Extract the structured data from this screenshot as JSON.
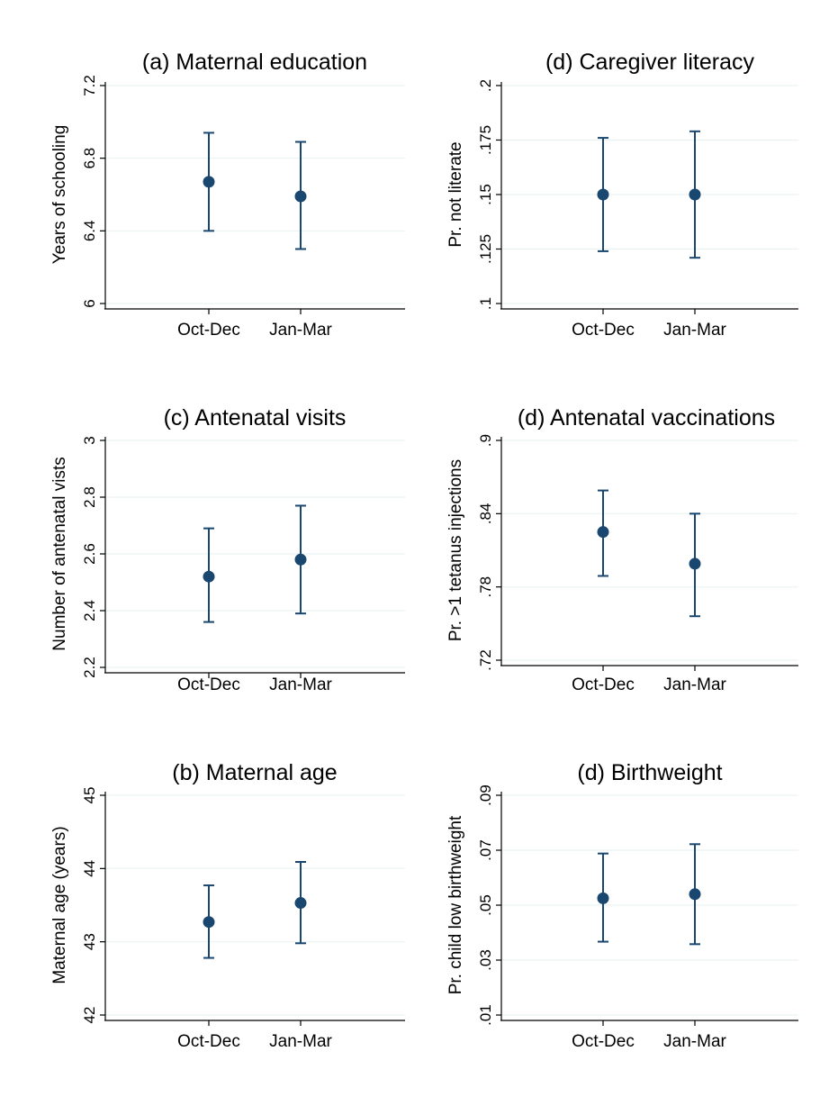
{
  "colors": {
    "background": "#ffffff",
    "marker": "#1a476f",
    "error_bar": "#1a476f",
    "gridline": "#eaf2f3",
    "axis": "#000000"
  },
  "chart_data": [
    {
      "type": "scatter",
      "title": "(a) Maternal education",
      "xlabel": "",
      "ylabel": "Years of schooling",
      "categories": [
        "Oct-Dec",
        "Jan-Mar"
      ],
      "values": [
        6.67,
        6.59
      ],
      "ci_low": [
        6.4,
        6.3
      ],
      "ci_high": [
        6.94,
        6.89
      ],
      "ylim": [
        6,
        7.2
      ],
      "yticks": [
        6,
        6.4,
        6.8,
        7.2
      ],
      "ytick_labels": [
        "6",
        "6.4",
        "6.8",
        "7.2"
      ],
      "grid": true,
      "error_bars": true
    },
    {
      "type": "scatter",
      "title": "(d) Caregiver literacy",
      "xlabel": "",
      "ylabel": "Pr. not literate",
      "categories": [
        "Oct-Dec",
        "Jan-Mar"
      ],
      "values": [
        0.15,
        0.15
      ],
      "ci_low": [
        0.124,
        0.121
      ],
      "ci_high": [
        0.176,
        0.179
      ],
      "ylim": [
        0.1,
        0.2
      ],
      "yticks": [
        0.1,
        0.125,
        0.15,
        0.175,
        0.2
      ],
      "ytick_labels": [
        ".1",
        ".125",
        ".15",
        ".175",
        ".2"
      ],
      "grid": true,
      "error_bars": true
    },
    {
      "type": "scatter",
      "title": "(c) Antenatal visits",
      "xlabel": "",
      "ylabel": "Number of antenatal vists",
      "categories": [
        "Oct-Dec",
        "Jan-Mar"
      ],
      "values": [
        2.52,
        2.58
      ],
      "ci_low": [
        2.36,
        2.39
      ],
      "ci_high": [
        2.69,
        2.77
      ],
      "ylim": [
        2.2,
        3.0
      ],
      "yticks": [
        2.2,
        2.4,
        2.6,
        2.8,
        3.0
      ],
      "ytick_labels": [
        "2.2",
        "2.4",
        "2.6",
        "2.8",
        "3"
      ],
      "grid": true,
      "error_bars": true
    },
    {
      "type": "scatter",
      "title": "(d) Antenatal vaccinations",
      "xlabel": "",
      "ylabel": "Pr. >1 tetanus injections",
      "categories": [
        "Oct-Dec",
        "Jan-Mar"
      ],
      "values": [
        0.825,
        0.799
      ],
      "ci_low": [
        0.789,
        0.756
      ],
      "ci_high": [
        0.859,
        0.84
      ],
      "ylim": [
        0.72,
        0.9
      ],
      "yticks": [
        0.72,
        0.78,
        0.84,
        0.9
      ],
      "ytick_labels": [
        ".72",
        ".78",
        ".84",
        ".9"
      ],
      "grid": true,
      "error_bars": true
    },
    {
      "type": "scatter",
      "title": "(b) Maternal age",
      "xlabel": "",
      "ylabel": "Maternal age (years)",
      "categories": [
        "Oct-Dec",
        "Jan-Mar"
      ],
      "values": [
        43.27,
        43.53
      ],
      "ci_low": [
        42.78,
        42.98
      ],
      "ci_high": [
        43.77,
        44.09
      ],
      "ylim": [
        42,
        45
      ],
      "yticks": [
        42,
        43,
        44,
        45
      ],
      "ytick_labels": [
        "42",
        "43",
        "44",
        "45"
      ],
      "grid": true,
      "error_bars": true
    },
    {
      "type": "scatter",
      "title": "(d) Birthweight",
      "xlabel": "",
      "ylabel": "Pr. child low birthweight",
      "categories": [
        "Oct-Dec",
        "Jan-Mar"
      ],
      "values": [
        0.0525,
        0.054
      ],
      "ci_low": [
        0.0367,
        0.0358
      ],
      "ci_high": [
        0.0688,
        0.0722
      ],
      "ylim": [
        0.01,
        0.09
      ],
      "yticks": [
        0.01,
        0.03,
        0.05,
        0.07,
        0.09
      ],
      "ytick_labels": [
        ".01",
        ".03",
        ".05",
        ".07",
        ".09"
      ],
      "grid": true,
      "error_bars": true
    }
  ]
}
